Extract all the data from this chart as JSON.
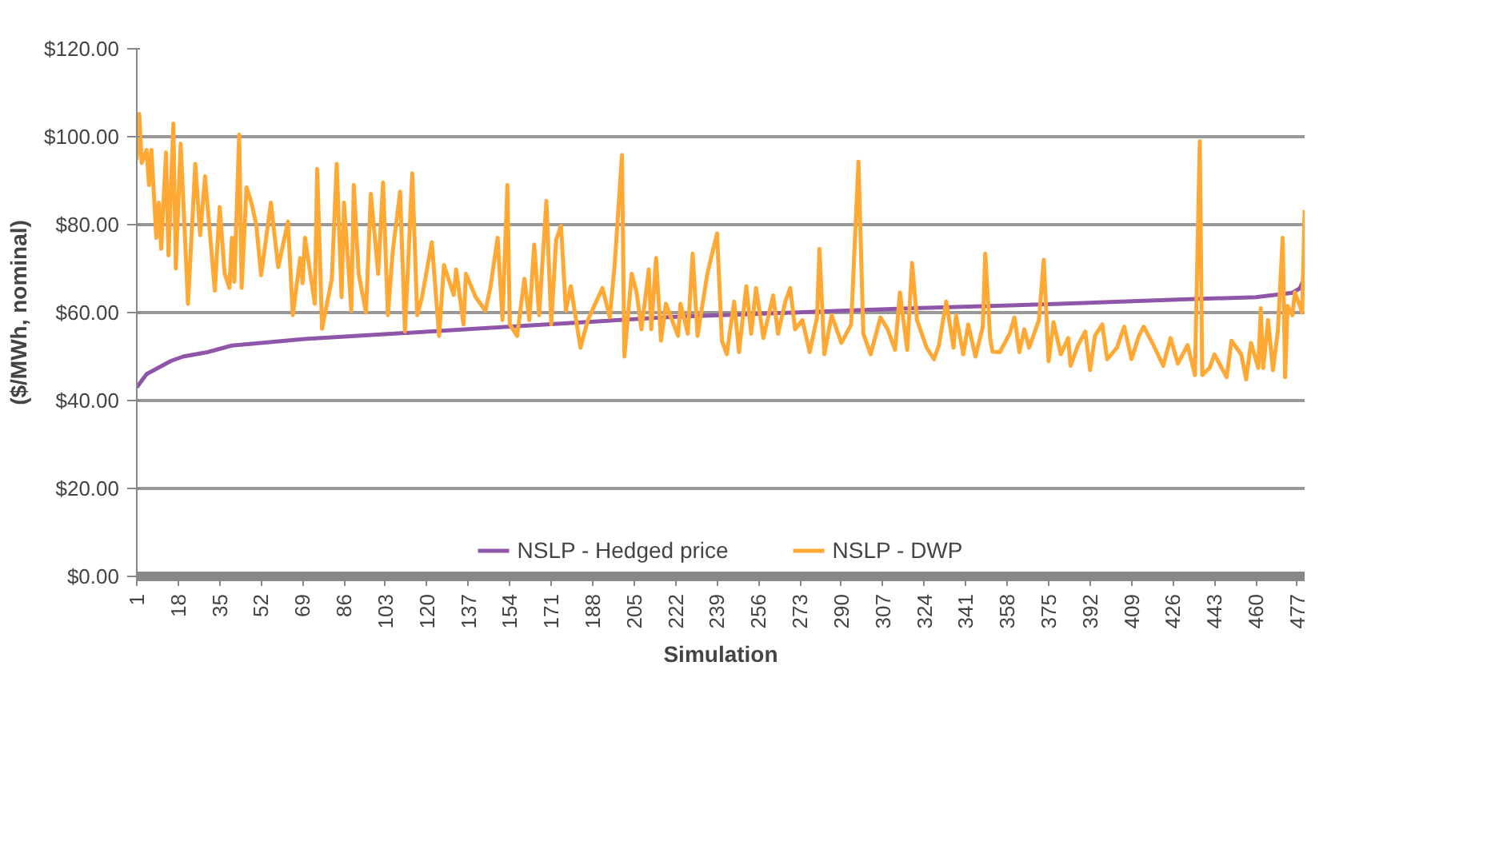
{
  "chart_data": {
    "type": "line",
    "xlabel": "Simulation",
    "ylabel": "($/MWh, nominal)",
    "xlim": [
      1,
      480
    ],
    "xticks": [
      1,
      18,
      35,
      52,
      69,
      86,
      103,
      120,
      137,
      154,
      171,
      188,
      205,
      222,
      239,
      256,
      273,
      290,
      307,
      324,
      341,
      358,
      375,
      392,
      409,
      426,
      443,
      460,
      477
    ],
    "ylim": [
      0,
      120
    ],
    "yticks": [
      {
        "value": 0,
        "label": "$0.00"
      },
      {
        "value": 20,
        "label": "$20.00"
      },
      {
        "value": 40,
        "label": "$40.00"
      },
      {
        "value": 60,
        "label": "$60.00"
      },
      {
        "value": 80,
        "label": "$80.00"
      },
      {
        "value": 100,
        "label": "$100.00"
      },
      {
        "value": 120,
        "label": "$120.00"
      }
    ],
    "grid": "y",
    "legend": "bottom",
    "tick_labels": true,
    "series": [
      {
        "name": "NSLP - Hedged price",
        "color": "#8e55a8",
        "x": [
          1,
          5,
          10,
          15,
          20,
          30,
          40,
          60,
          70,
          100,
          130,
          160,
          190,
          220,
          270,
          320,
          380,
          430,
          460,
          475,
          478,
          480
        ],
        "values": [
          43,
          46,
          47.5,
          49,
          50,
          51,
          52.5,
          53.5,
          54,
          55,
          56,
          57,
          58,
          59,
          60,
          61,
          62,
          63,
          63.5,
          64.5,
          65.5,
          68
        ]
      },
      {
        "name": "NSLP - DWP",
        "color": "#ffa833",
        "x": [
          1,
          2,
          3,
          5,
          6,
          7,
          9,
          10,
          11,
          13,
          14,
          16,
          17,
          19,
          22,
          25,
          27,
          29,
          31,
          33,
          35,
          37,
          39,
          40,
          41,
          43,
          44,
          46,
          48,
          50,
          52,
          56,
          59,
          63,
          65,
          68,
          69,
          70,
          74,
          75,
          77,
          81,
          83,
          85,
          86,
          89,
          90,
          92,
          95,
          97,
          100,
          102,
          104,
          106,
          109,
          111,
          114,
          116,
          118,
          122,
          125,
          127,
          131,
          132,
          135,
          136,
          140,
          144,
          146,
          149,
          151,
          153,
          154,
          157,
          160,
          162,
          164,
          166,
          169,
          171,
          173,
          175,
          177,
          179,
          183,
          186,
          192,
          195,
          197,
          200,
          201,
          204,
          206,
          208,
          211,
          212,
          214,
          216,
          218,
          223,
          224,
          227,
          229,
          231,
          235,
          239,
          241,
          243,
          246,
          248,
          251,
          253,
          255,
          258,
          262,
          264,
          267,
          269,
          271,
          274,
          277,
          280,
          281,
          283,
          286,
          290,
          294,
          297,
          299,
          302,
          306,
          309,
          312,
          314,
          317,
          319,
          321,
          325,
          328,
          330,
          333,
          336,
          337,
          340,
          342,
          345,
          348,
          349,
          351,
          352,
          355,
          359,
          361,
          363,
          365,
          367,
          371,
          373,
          375,
          377,
          380,
          383,
          384,
          387,
          390,
          392,
          394,
          397,
          399,
          403,
          406,
          409,
          412,
          414,
          418,
          422,
          425,
          428,
          432,
          435,
          437,
          438,
          441,
          443,
          448,
          450,
          454,
          456,
          458,
          461,
          462,
          463,
          465,
          467,
          469,
          471,
          472,
          473,
          475,
          476,
          479,
          480
        ],
        "values": [
          94.8,
          105.2,
          94,
          97,
          89,
          97,
          77,
          85,
          74.5,
          96.4,
          73,
          103,
          70,
          98.4,
          62,
          93.8,
          77.6,
          91,
          78,
          65,
          84,
          69,
          65.6,
          77,
          67,
          100.5,
          65.6,
          88.5,
          85,
          80,
          68.5,
          85,
          70.3,
          80.7,
          59.4,
          72.4,
          66.7,
          77,
          62,
          92.7,
          56.3,
          67.7,
          93.8,
          63.5,
          85,
          60.4,
          89,
          68.8,
          60,
          87,
          68.8,
          89.6,
          59.4,
          74,
          87.5,
          55.7,
          91.7,
          59.4,
          63.5,
          76,
          54.7,
          70.8,
          64,
          69.8,
          57.3,
          68.8,
          63.5,
          60.4,
          65.6,
          77,
          58.3,
          89,
          57.3,
          54.7,
          67.7,
          58.3,
          75.5,
          59.4,
          85.4,
          57.3,
          76.6,
          79.7,
          60.4,
          66,
          52,
          58.3,
          65.6,
          58.9,
          70.8,
          95.8,
          50,
          68.8,
          64.6,
          56.2,
          69.8,
          56.2,
          72.4,
          53.6,
          62,
          54.7,
          62,
          55.2,
          73.4,
          54.7,
          68.8,
          78,
          53.6,
          50.5,
          62.5,
          51,
          66,
          55.2,
          65.6,
          54.2,
          63.9,
          55.2,
          62.5,
          65.6,
          56.2,
          58.3,
          51,
          58.9,
          74.5,
          50.5,
          59.4,
          53.1,
          57.3,
          94.3,
          55.2,
          50.5,
          58.9,
          56.2,
          51.5,
          64.6,
          51.5,
          71.3,
          58.3,
          52,
          49.4,
          52.6,
          62.5,
          52,
          59.4,
          50.5,
          57.3,
          50,
          56.8,
          73.4,
          54.2,
          51.1,
          51,
          55.2,
          58.9,
          51,
          56.2,
          52,
          58.3,
          72,
          48.9,
          57.8,
          50.5,
          54.2,
          47.9,
          52.5,
          55.7,
          46.9,
          54.7,
          57.3,
          49.4,
          52,
          56.8,
          49.4,
          54.7,
          56.8,
          52.6,
          47.9,
          54.2,
          48.4,
          52.6,
          45.8,
          99,
          45.8,
          47.4,
          50.5,
          45.3,
          53.6,
          50.5,
          44.8,
          53.1,
          47.4,
          61,
          47.4,
          58.3,
          46.9,
          55.7,
          77,
          45.3,
          61.5,
          59.4,
          64.6,
          60,
          83.3
        ]
      }
    ]
  }
}
